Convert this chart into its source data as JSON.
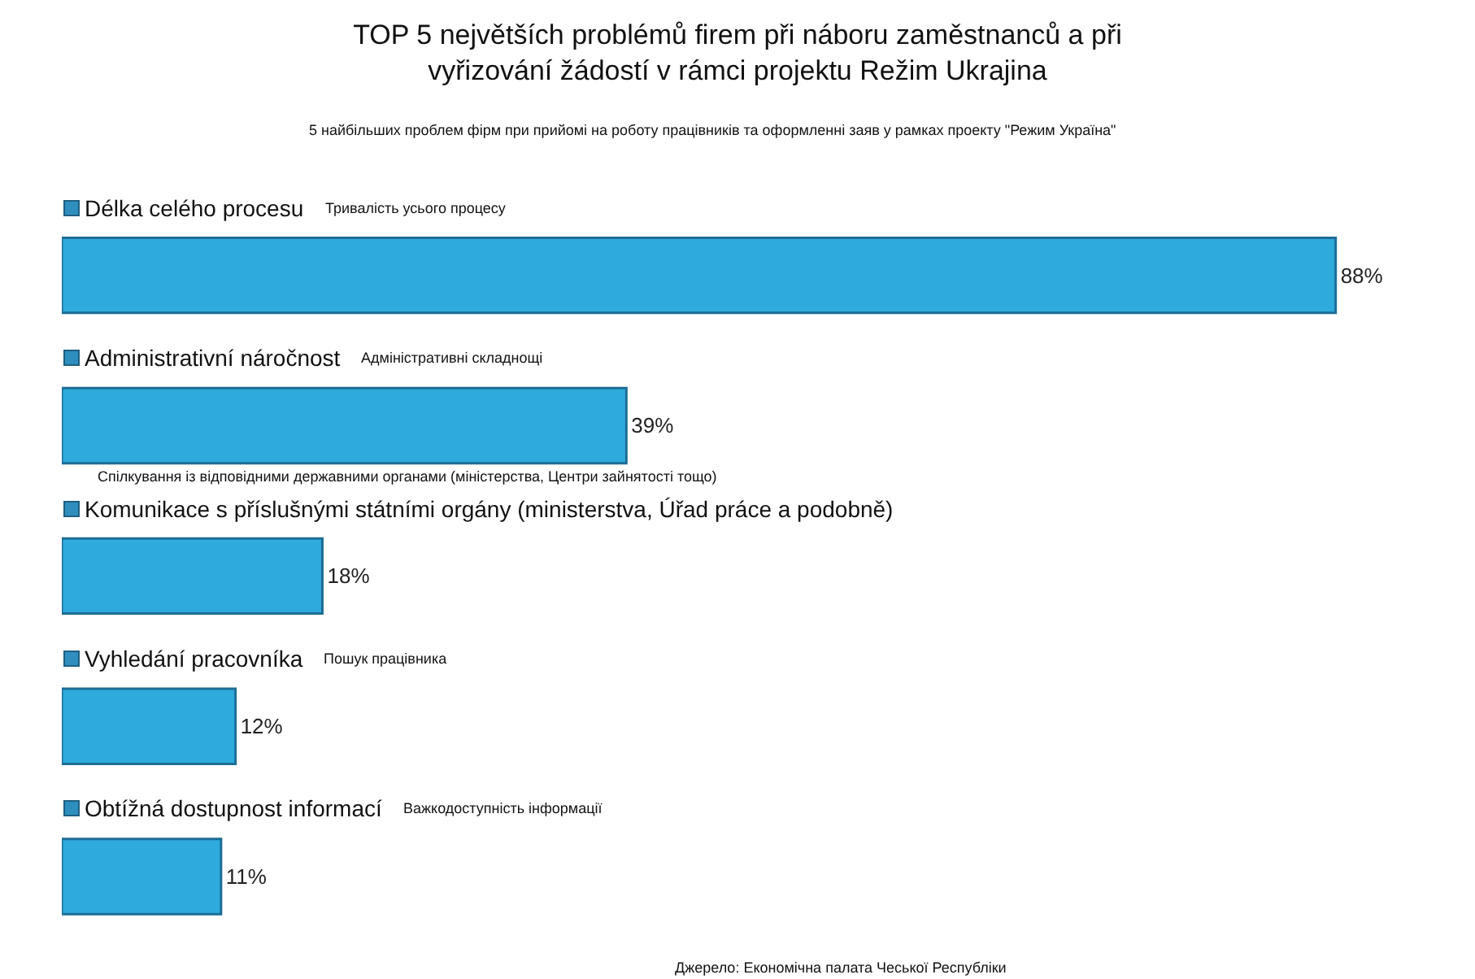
{
  "chart_data": {
    "type": "bar",
    "orientation": "horizontal",
    "title": "TOP 5 největších problémů firem při náboru zaměstnanců a při vyřizování žádostí v rámci projektu Režim Ukrajina",
    "subtitle": "5 найбільших проблем фірм при прийомі на роботу працівників та оформленні заяв у рамках проекту \"Режим Україна\"",
    "categories": [
      "Délka celého procesu",
      "Administrativní náročnost",
      "Komunikace s příslušnými státními orgány (ministerstva, Úřad práce a podobně)",
      "Vyhledání pracovníka",
      "Obtížná dostupnost informací"
    ],
    "values": [
      88,
      39,
      18,
      12,
      11
    ],
    "value_labels": [
      "88%",
      "39%",
      "18%",
      "12%",
      "11%"
    ],
    "color": "#2eaadc",
    "annotations": [
      "Тривалість усього процесу",
      "Адміністративні складнощі",
      "Спілкування із відповідними державними органами (міністерства, Центри зайнятості тощо)",
      "Пошук працівника",
      "Важкодоступність інформації",
      "Джерело: Економічна палата Чеської Республіки"
    ],
    "legend": false,
    "grid": false
  }
}
